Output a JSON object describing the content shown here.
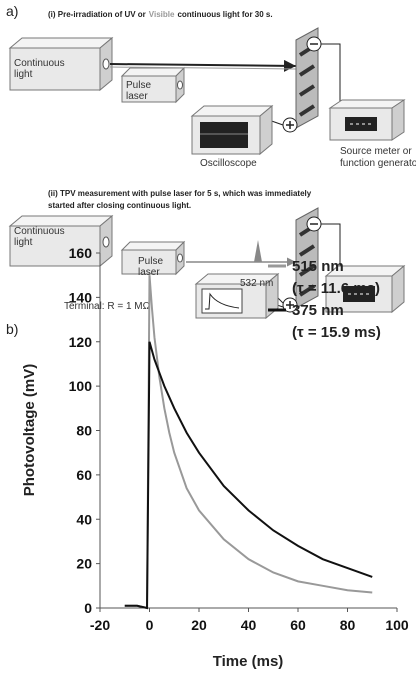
{
  "panel_a": {
    "label": "a)",
    "step1": {
      "title": [
        "(i) Pre-irradiation of UV or",
        "Visible",
        "continuous light for 30 s."
      ],
      "continuous_light": [
        "Continuous",
        "light"
      ],
      "pulse_laser": [
        "Pulse",
        "laser"
      ],
      "source_meter": [
        "Source meter or",
        "function generator"
      ],
      "oscilloscope": "Oscilloscope"
    },
    "step2": {
      "title": [
        "(ii) TPV measurement with pulse laser for 5 s, which was immediately",
        "started after closing continuous light."
      ],
      "continuous_light": [
        "Continuous",
        "light"
      ],
      "pulse_laser": [
        "Pulse",
        "laser"
      ],
      "wavelength": "532 nm",
      "terminal": "Terminal: R = 1 MΩ"
    }
  },
  "chart_data": {
    "type": "line",
    "panel_label": "b)",
    "xlabel": "Time (ms)",
    "ylabel": "Photovoltage (mV)",
    "xlim": [
      -20,
      100
    ],
    "xticks": [
      -20,
      0,
      20,
      40,
      60,
      80,
      100
    ],
    "ylim": [
      0,
      160
    ],
    "yticks": [
      0,
      20,
      40,
      60,
      80,
      100,
      120,
      140,
      160
    ],
    "legend": "upper right",
    "x": [
      -10,
      -5,
      -1,
      0,
      1,
      2,
      4,
      6,
      8,
      10,
      15,
      20,
      30,
      40,
      50,
      60,
      70,
      80,
      90
    ],
    "series": [
      {
        "name": "515 nm",
        "annotation": "(τ = 11.6 ms)",
        "color": "#999999",
        "values": [
          1,
          1,
          0,
          150,
          135,
          122,
          104,
          90,
          79,
          70,
          54,
          44,
          31,
          22,
          16,
          12,
          10,
          8,
          7
        ]
      },
      {
        "name": "375 nm",
        "annotation": "(τ = 15.9 ms)",
        "color": "#111111",
        "values": [
          1,
          1,
          0,
          120,
          116,
          112,
          106,
          100,
          95,
          90,
          79,
          70,
          55,
          44,
          35,
          28,
          22,
          18,
          14
        ]
      }
    ]
  }
}
